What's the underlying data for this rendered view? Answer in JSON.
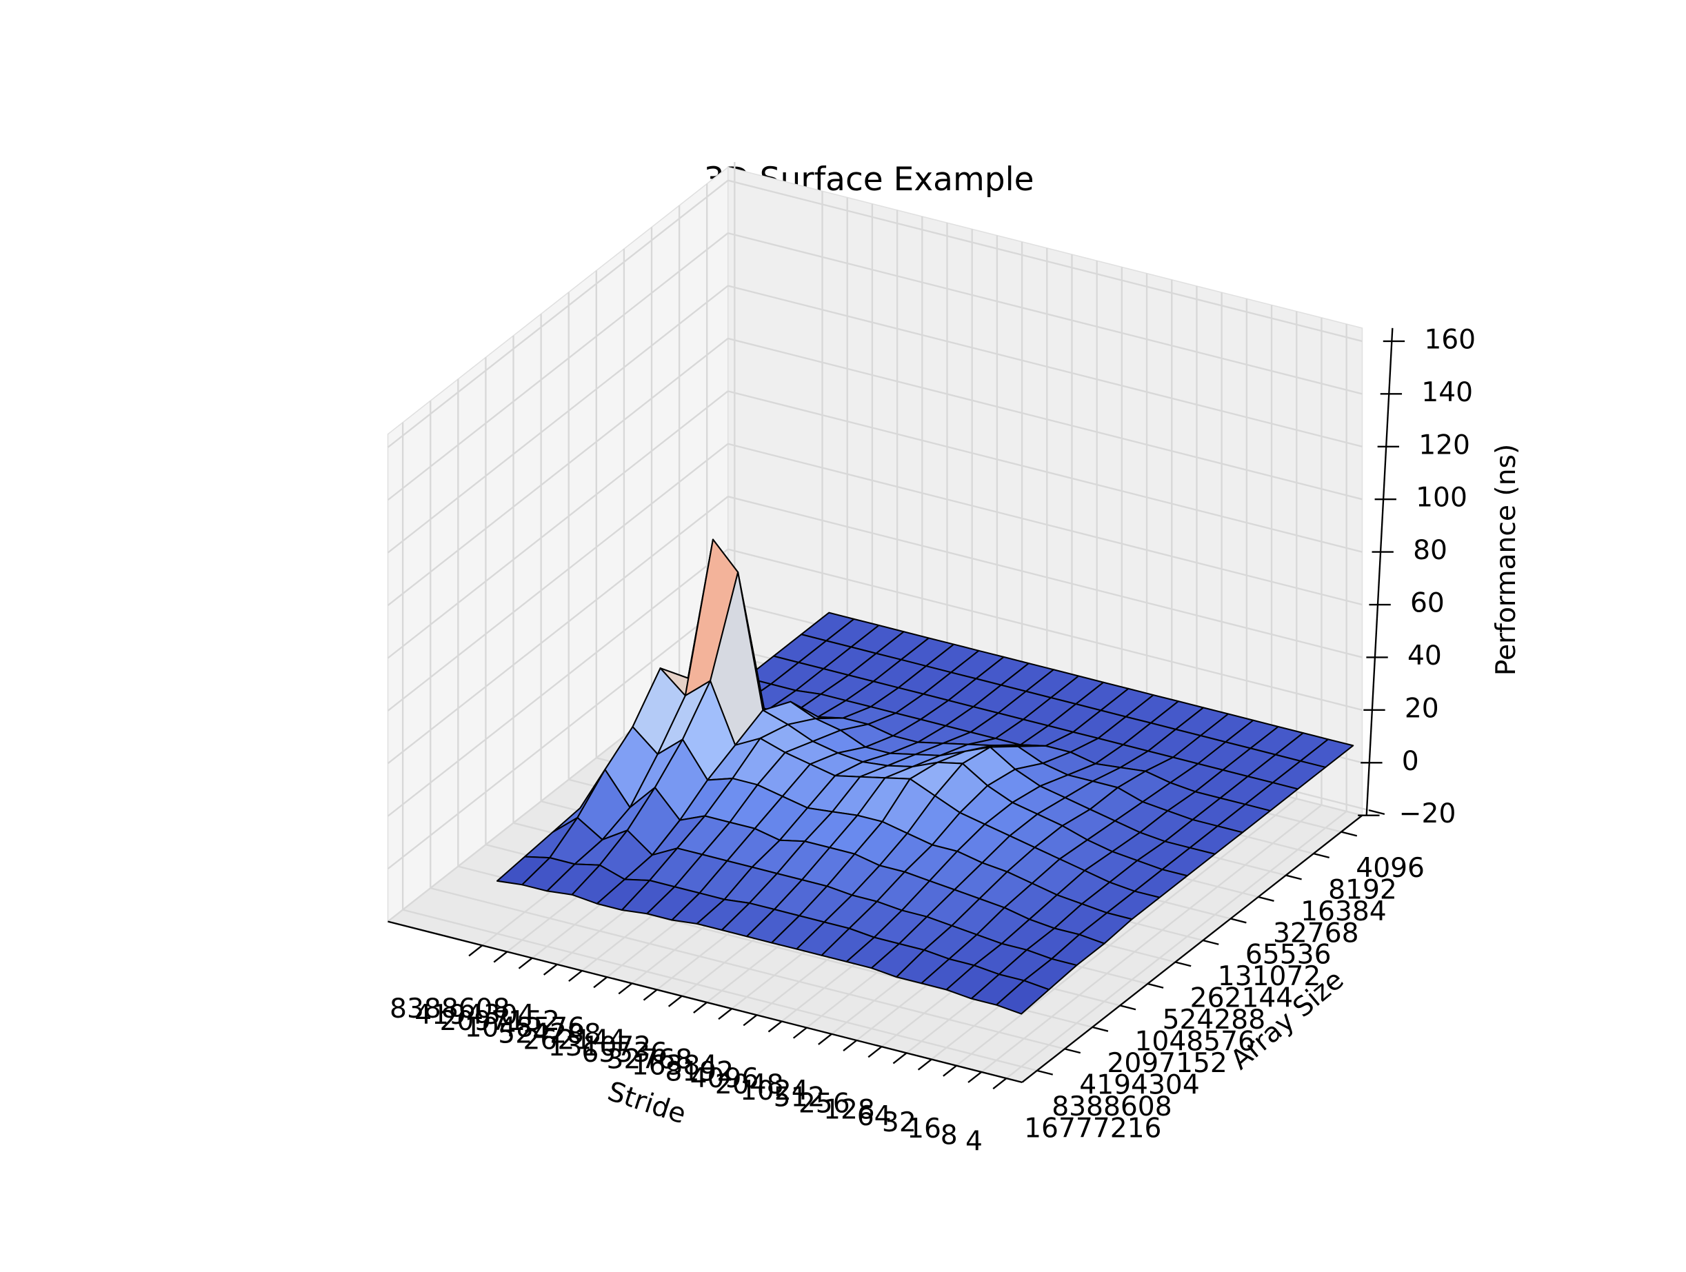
{
  "chart_data": {
    "type": "surface",
    "title": "3D Surface Example",
    "xlabel": "Stride",
    "ylabel": "Array Size",
    "zlabel": "Performance (ns)",
    "xcategories": [
      "8388608",
      "4194304",
      "2097152",
      "1048576",
      "524288",
      "262144",
      "131072",
      "65536",
      "32768",
      "16384",
      "8192",
      "4096",
      "2048",
      "1024",
      "512",
      "256",
      "128",
      "64",
      "32",
      "16",
      "8",
      "4"
    ],
    "ycategories": [
      "4096",
      "8192",
      "16384",
      "32768",
      "65536",
      "131072",
      "262144",
      "524288",
      "1048576",
      "2097152",
      "4194304",
      "8388608",
      "16777216"
    ],
    "z": [
      [
        3,
        3,
        3,
        3,
        3,
        3,
        3,
        3,
        3,
        3,
        3,
        3,
        3,
        3,
        3,
        3,
        3,
        3,
        3,
        3,
        3,
        3
      ],
      [
        3,
        3,
        3,
        3,
        3,
        3,
        3,
        3,
        3,
        3,
        3,
        3,
        3,
        3,
        3,
        3,
        3,
        3,
        3,
        3,
        3,
        3
      ],
      [
        3,
        3,
        3,
        3,
        3,
        3,
        3,
        3,
        3,
        3,
        3,
        3,
        3,
        3,
        3,
        3,
        3,
        3,
        3,
        3,
        3,
        3
      ],
      [
        3,
        3,
        3,
        4,
        4,
        4,
        4,
        4,
        4,
        4,
        4,
        4,
        6,
        6,
        4,
        5,
        6,
        4,
        3,
        3,
        3,
        3
      ],
      [
        4,
        4,
        4,
        5,
        6,
        8,
        8,
        6,
        6,
        8,
        10,
        12,
        14,
        10,
        8,
        8,
        8,
        5,
        4,
        3,
        3,
        3
      ],
      [
        5,
        5,
        8,
        12,
        20,
        16,
        14,
        10,
        10,
        12,
        14,
        18,
        22,
        16,
        12,
        10,
        8,
        6,
        4,
        3,
        3,
        3
      ],
      [
        8,
        30,
        85,
        75,
        25,
        22,
        18,
        16,
        15,
        16,
        18,
        22,
        24,
        18,
        14,
        12,
        10,
        7,
        5,
        4,
        3,
        3
      ],
      [
        5,
        42,
        34,
        42,
        20,
        25,
        22,
        20,
        18,
        20,
        22,
        24,
        20,
        16,
        14,
        12,
        10,
        8,
        6,
        4,
        3,
        3
      ],
      [
        4,
        28,
        20,
        28,
        15,
        18,
        18,
        16,
        14,
        15,
        16,
        16,
        14,
        12,
        12,
        10,
        9,
        7,
        5,
        4,
        3,
        3
      ],
      [
        3,
        20,
        8,
        18,
        8,
        12,
        12,
        12,
        10,
        12,
        12,
        12,
        10,
        10,
        9,
        8,
        7,
        6,
        4,
        3,
        3,
        2
      ],
      [
        2,
        10,
        4,
        10,
        3,
        8,
        8,
        8,
        8,
        8,
        8,
        8,
        7,
        7,
        6,
        6,
        5,
        4,
        3,
        3,
        2,
        2
      ],
      [
        1,
        3,
        3,
        5,
        2,
        4,
        4,
        4,
        4,
        5,
        5,
        5,
        5,
        5,
        4,
        4,
        4,
        3,
        3,
        2,
        2,
        1
      ],
      [
        0,
        1,
        1,
        2,
        1,
        1,
        2,
        2,
        3,
        3,
        3,
        3,
        3,
        3,
        3,
        3,
        2,
        2,
        2,
        1,
        1,
        0
      ]
    ],
    "zlim": [
      -20,
      165
    ],
    "zticks": [
      {
        "value": -20,
        "label": "−20"
      },
      0,
      20,
      40,
      60,
      80,
      100,
      120,
      140,
      160
    ],
    "colormap": [
      "#3b4cc0",
      "#6a8bef",
      "#aac7fd",
      "#dddcdc",
      "#f5c0a6",
      "#e7745b",
      "#b40426"
    ],
    "grid": true
  }
}
